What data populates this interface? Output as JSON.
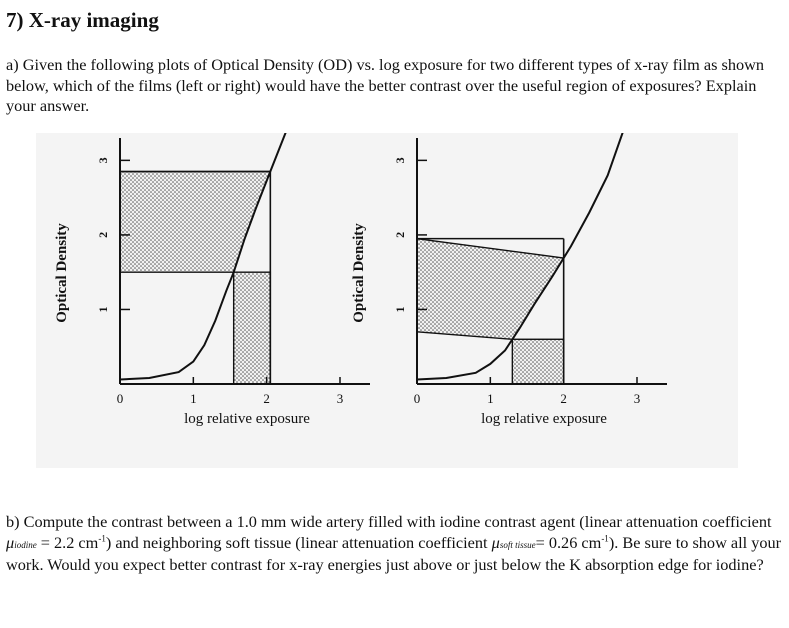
{
  "question": {
    "title": "7) X-ray imaging",
    "part_a": {
      "label": "a)",
      "text": "Given the following plots of Optical Density (OD) vs. log exposure for two different types of x-ray film as shown below, which of the films (left or right) would have the better contrast over the useful region of exposures?  Explain your answer."
    },
    "part_b": {
      "label": "b)",
      "text_1": "Compute the contrast between a 1.0 mm wide artery filled with iodine contrast agent (linear attenuation coefficient ",
      "mu_symbol": "μ",
      "mu_iodine_sub": "iodine",
      "text_2": " = 2.2 cm",
      "unit_sup_1": "-1",
      "text_3": ") and neighboring soft tissue (linear attenuation coefficient ",
      "mu_soft_sub": "soft tissue",
      "text_4": "= 0.26 cm",
      "unit_sup_2": "-1",
      "text_5": ").  Be sure to show all your work.  Would you expect better contrast for x-ray energies just above or just below the K absorption edge for iodine?"
    }
  },
  "chart_data": [
    {
      "type": "line",
      "panel": "left",
      "xlabel": "log relative exposure",
      "ylabel": "Optical Density",
      "xticks": [
        "0",
        "1",
        "2",
        "3"
      ],
      "yticks": [
        "1",
        "2",
        "3"
      ],
      "xlim": [
        0,
        3.3
      ],
      "ylim": [
        0,
        3.3
      ],
      "curve": {
        "x": [
          0,
          0.4,
          0.8,
          1.0,
          1.15,
          1.3,
          1.45,
          1.55,
          1.7,
          1.85,
          2.05,
          2.25,
          2.45
        ],
        "y": [
          0.06,
          0.08,
          0.16,
          0.3,
          0.52,
          0.85,
          1.25,
          1.5,
          1.95,
          2.35,
          2.85,
          3.35,
          3.85
        ]
      },
      "useful_region": {
        "exposure_range": [
          1.55,
          2.05
        ],
        "od_range": [
          1.5,
          2.85
        ]
      }
    },
    {
      "type": "line",
      "panel": "right",
      "xlabel": "log relative exposure",
      "ylabel": "Optical Density",
      "xticks": [
        "0",
        "1",
        "2",
        "3"
      ],
      "yticks": [
        "1",
        "2",
        "3"
      ],
      "xlim": [
        0,
        3.3
      ],
      "ylim": [
        0,
        3.3
      ],
      "curve": {
        "x": [
          0,
          0.4,
          0.8,
          1.0,
          1.2,
          1.4,
          1.6,
          1.85,
          2.1,
          2.35,
          2.6,
          2.85
        ],
        "y": [
          0.06,
          0.08,
          0.15,
          0.27,
          0.45,
          0.75,
          1.07,
          1.45,
          1.85,
          2.3,
          2.8,
          3.5
        ]
      },
      "useful_region": {
        "exposure_range": [
          1.3,
          2.0
        ],
        "od_range": [
          0.7,
          1.95
        ]
      }
    }
  ]
}
